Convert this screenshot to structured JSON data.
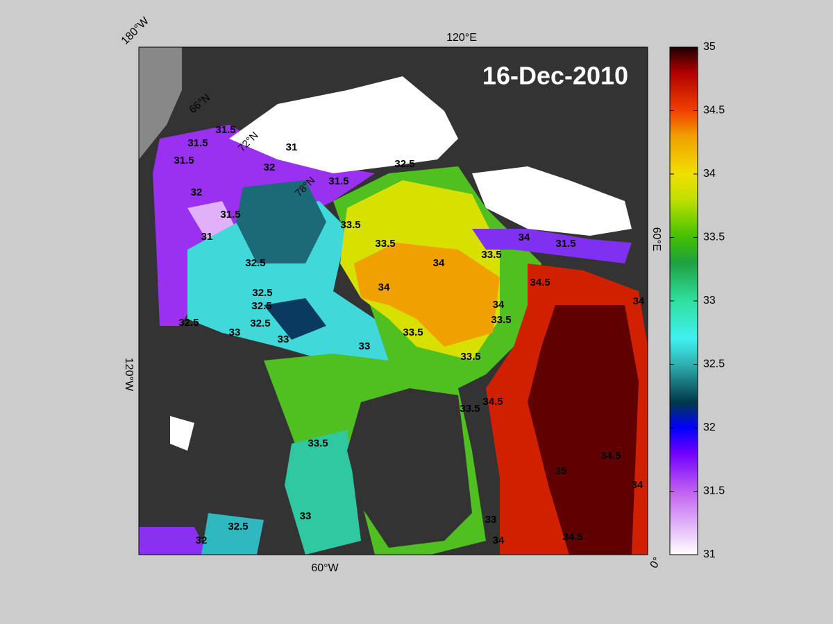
{
  "map": {
    "date": "16-Dec-2010",
    "longitude_labels": [
      "180°W",
      "120°E",
      "60°E",
      "0°",
      "60°W",
      "120°W"
    ],
    "latitude_labels": [
      "66°N",
      "72°N",
      "78°N"
    ],
    "contour_labels": [
      31.5,
      31.5,
      31.5,
      31,
      32,
      31.5,
      32,
      31.5,
      31,
      32.5,
      32.5,
      32.5,
      32.5,
      32.5,
      33,
      33,
      33,
      33.5,
      34,
      34,
      33.5,
      33.5,
      34,
      33.5,
      33.5,
      34,
      31.5,
      34.5,
      33.5,
      33.5,
      34.5,
      33.5,
      33,
      33,
      34,
      34.5,
      35,
      34.5,
      34,
      34,
      32.5,
      32,
      32.5
    ],
    "colorbar": {
      "lim": [
        31,
        35
      ],
      "ticks": [
        31,
        31.5,
        32,
        32.5,
        33,
        33.5,
        34,
        34.5,
        35
      ],
      "colormap": [
        [
          31,
          "#ffffff"
        ],
        [
          31.5,
          "#c060f0"
        ],
        [
          31.8,
          "#7000ff"
        ],
        [
          32,
          "#0000ff"
        ],
        [
          32.2,
          "#003848"
        ],
        [
          32.5,
          "#30b0b0"
        ],
        [
          32.7,
          "#40f0f0"
        ],
        [
          33,
          "#30e0a0"
        ],
        [
          33.3,
          "#20a040"
        ],
        [
          33.5,
          "#40c000"
        ],
        [
          33.8,
          "#c0e000"
        ],
        [
          34,
          "#f0e000"
        ],
        [
          34.3,
          "#f0a000"
        ],
        [
          34.5,
          "#f04000"
        ],
        [
          34.8,
          "#b00000"
        ],
        [
          35,
          "#200000"
        ]
      ]
    }
  }
}
